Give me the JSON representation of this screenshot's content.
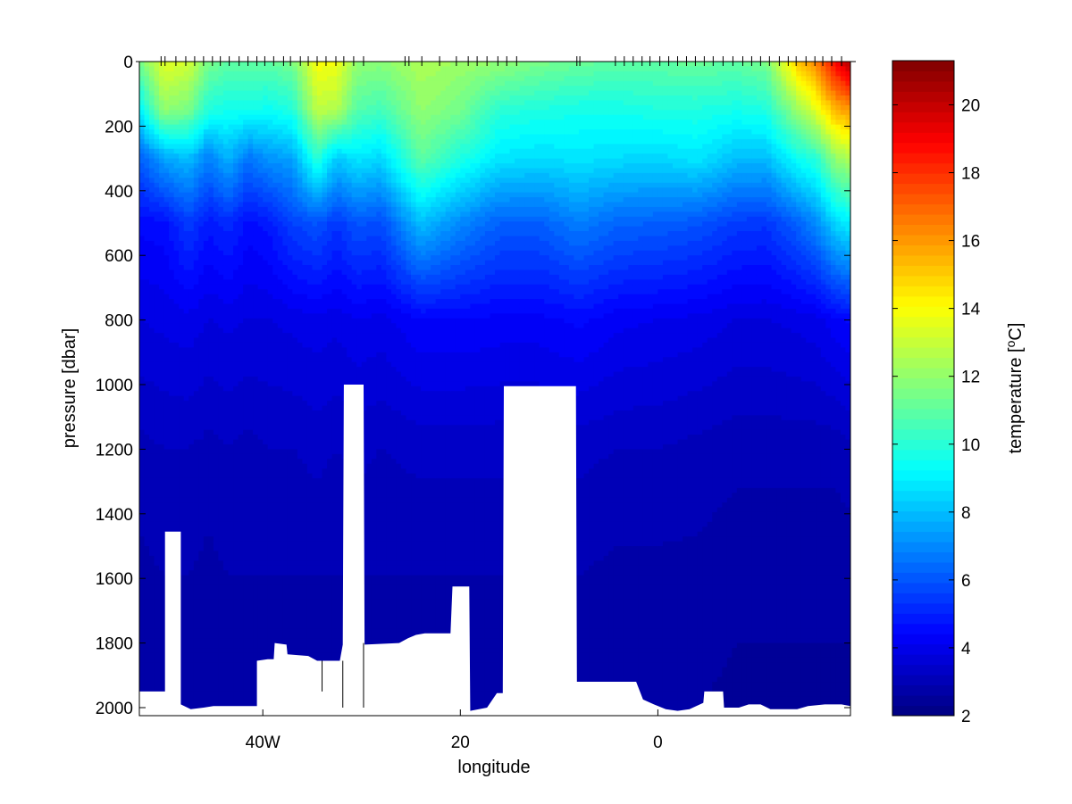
{
  "chart_data": {
    "type": "heatmap",
    "title": "",
    "xlabel": "longitude",
    "ylabel": "pressure [dbar]",
    "xlim": [
      -52.5,
      19.5
    ],
    "ylim": [
      2025,
      0
    ],
    "x_ticks": [
      {
        "value": -40,
        "label": "40W"
      },
      {
        "value": -20,
        "label": "20"
      },
      {
        "value": 0,
        "label": "0"
      }
    ],
    "y_ticks": [
      0,
      200,
      400,
      600,
      800,
      1000,
      1200,
      1400,
      1600,
      1800,
      2000
    ],
    "colorbar": {
      "label": "temperature [°C]",
      "label_main": "temperature [",
      "label_sup": "o",
      "label_unit": "C]",
      "range": [
        2.0,
        21.3
      ],
      "ticks": [
        2,
        4,
        6,
        8,
        10,
        12,
        14,
        16,
        18,
        20
      ],
      "colormap": "jet"
    },
    "station_longitudes": [
      -50.3,
      -49.9,
      -48.8,
      -47.8,
      -46.9,
      -46.0,
      -45.1,
      -44.3,
      -43.4,
      -42.4,
      -41.5,
      -40.6,
      -39.8,
      -38.9,
      -37.9,
      -37.2,
      -36.2,
      -35.4,
      -34.5,
      -33.6,
      -32.6,
      -31.8,
      -30.8,
      -29.8,
      -25.6,
      -25.2,
      -23.9,
      -22.1,
      -20.4,
      -19.2,
      -18.3,
      -17.3,
      -16.2,
      -15.3,
      -14.3,
      -8.2,
      -7.9,
      -4.3,
      -3.4,
      -2.5,
      -1.6,
      -0.8,
      0.2,
      1.1,
      2.0,
      2.9,
      3.8,
      4.7,
      5.6,
      6.6,
      7.6,
      8.6,
      9.5,
      10.4,
      11.3,
      12.3,
      13.2,
      14.0,
      15.0,
      15.9,
      16.7,
      17.6,
      18.6
    ],
    "bottom_profile": [
      [
        -52.5,
        1950
      ],
      [
        -49.9,
        1950
      ],
      [
        -49.9,
        1455
      ],
      [
        -48.3,
        1455
      ],
      [
        -48.3,
        1990
      ],
      [
        -47.3,
        2005
      ],
      [
        -46.0,
        2000
      ],
      [
        -45.0,
        1995
      ],
      [
        -40.6,
        1995
      ],
      [
        -40.6,
        1855
      ],
      [
        -39.5,
        1850
      ],
      [
        -38.9,
        1850
      ],
      [
        -38.8,
        1800
      ],
      [
        -37.6,
        1805
      ],
      [
        -37.5,
        1835
      ],
      [
        -35.4,
        1840
      ],
      [
        -34.5,
        1855
      ],
      [
        -33.3,
        1855
      ],
      [
        -32.2,
        1855
      ],
      [
        -31.9,
        1805
      ],
      [
        -31.8,
        1000
      ],
      [
        -29.8,
        1000
      ],
      [
        -29.7,
        1805
      ],
      [
        -26.2,
        1800
      ],
      [
        -25.3,
        1785
      ],
      [
        -24.5,
        1775
      ],
      [
        -23.6,
        1770
      ],
      [
        -21.0,
        1770
      ],
      [
        -20.8,
        1625
      ],
      [
        -19.1,
        1625
      ],
      [
        -19.0,
        2010
      ],
      [
        -17.3,
        2000
      ],
      [
        -16.3,
        1955
      ],
      [
        -15.7,
        1955
      ],
      [
        -15.6,
        1005
      ],
      [
        -8.3,
        1005
      ],
      [
        -8.2,
        1920
      ],
      [
        -2.2,
        1920
      ],
      [
        -1.5,
        1975
      ],
      [
        -0.4,
        1990
      ],
      [
        0.8,
        2005
      ],
      [
        2.0,
        2010
      ],
      [
        3.2,
        2005
      ],
      [
        4.6,
        1985
      ],
      [
        4.7,
        1950
      ],
      [
        6.6,
        1950
      ],
      [
        6.7,
        2000
      ],
      [
        8.2,
        2000
      ],
      [
        9.2,
        1990
      ],
      [
        10.4,
        1990
      ],
      [
        11.4,
        2005
      ],
      [
        12.4,
        2005
      ],
      [
        14.1,
        2005
      ],
      [
        15.2,
        1995
      ],
      [
        16.9,
        1990
      ],
      [
        18.6,
        1990
      ],
      [
        19.5,
        1995
      ]
    ],
    "bottom_spikes": [
      {
        "x": -34.0,
        "top": 1855,
        "bottom": 1950
      },
      {
        "x": -31.9,
        "top": 1855,
        "bottom": 2000
      },
      {
        "x": -29.8,
        "top": 1800,
        "bottom": 2000
      }
    ],
    "temperature_field": {
      "depth_levels": [
        0,
        150,
        300,
        500,
        800,
        1200,
        1600,
        2025
      ],
      "profiles": [
        {
          "x": -52.5,
          "t": [
            11.5,
            9.0,
            6.2,
            4.5,
            3.8,
            3.1,
            2.8,
            2.6
          ]
        },
        {
          "x": -50.0,
          "t": [
            13.5,
            12.0,
            7.5,
            4.6,
            3.9,
            3.2,
            2.9,
            2.6
          ]
        },
        {
          "x": -47.5,
          "t": [
            13.2,
            11.5,
            8.0,
            5.5,
            4.0,
            3.2,
            2.9,
            2.6
          ]
        },
        {
          "x": -45.5,
          "t": [
            11.5,
            9.8,
            6.8,
            4.8,
            3.8,
            3.1,
            2.8,
            2.6
          ]
        },
        {
          "x": -43.5,
          "t": [
            11.0,
            9.6,
            7.8,
            5.2,
            3.9,
            3.2,
            2.9,
            2.6
          ]
        },
        {
          "x": -41.5,
          "t": [
            11.0,
            9.6,
            6.6,
            4.6,
            3.8,
            3.1,
            2.9,
            2.6
          ]
        },
        {
          "x": -39.5,
          "t": [
            11.0,
            9.4,
            7.2,
            4.8,
            3.8,
            3.2,
            2.9,
            2.6
          ]
        },
        {
          "x": -37.0,
          "t": [
            11.5,
            9.8,
            7.5,
            5.6,
            3.9,
            3.2,
            2.9,
            2.6
          ]
        },
        {
          "x": -34.5,
          "t": [
            14.0,
            12.8,
            10.0,
            6.0,
            4.0,
            3.3,
            2.9,
            2.6
          ]
        },
        {
          "x": -32.5,
          "t": [
            13.8,
            12.6,
            8.2,
            5.4,
            3.9,
            3.2,
            2.9,
            2.6
          ]
        },
        {
          "x": -30.5,
          "t": [
            12.0,
            10.8,
            8.8,
            6.0,
            4.1,
            3.3,
            2.9,
            2.6
          ]
        },
        {
          "x": -28.0,
          "t": [
            11.8,
            10.5,
            8.5,
            5.8,
            4.0,
            3.2,
            2.9,
            2.6
          ]
        },
        {
          "x": -24.0,
          "t": [
            12.5,
            12.0,
            11.0,
            8.0,
            4.4,
            3.3,
            2.9,
            2.6
          ]
        },
        {
          "x": -20.0,
          "t": [
            12.2,
            11.4,
            9.8,
            7.0,
            4.4,
            3.3,
            2.9,
            2.6
          ]
        },
        {
          "x": -16.0,
          "t": [
            12.0,
            10.0,
            8.8,
            6.2,
            4.3,
            3.3,
            2.9,
            2.6
          ]
        },
        {
          "x": -12.0,
          "t": [
            11.5,
            9.8,
            8.6,
            6.2,
            4.3,
            3.3,
            2.9,
            2.6
          ]
        },
        {
          "x": -8.0,
          "t": [
            11.2,
            9.6,
            8.8,
            6.8,
            4.5,
            3.3,
            2.9,
            2.6
          ]
        },
        {
          "x": -4.0,
          "t": [
            11.0,
            9.6,
            8.6,
            6.3,
            4.2,
            3.2,
            2.8,
            2.6
          ]
        },
        {
          "x": 0.0,
          "t": [
            11.0,
            9.8,
            8.5,
            6.2,
            4.1,
            3.2,
            2.8,
            2.6
          ]
        },
        {
          "x": 4.0,
          "t": [
            11.2,
            9.8,
            8.8,
            6.0,
            4.0,
            3.1,
            2.8,
            2.6
          ]
        },
        {
          "x": 8.0,
          "t": [
            11.0,
            9.6,
            8.0,
            5.5,
            3.8,
            3.0,
            2.7,
            2.5
          ]
        },
        {
          "x": 11.0,
          "t": [
            11.5,
            9.8,
            8.0,
            5.4,
            3.8,
            3.0,
            2.7,
            2.5
          ]
        },
        {
          "x": 14.0,
          "t": [
            15.0,
            12.0,
            9.4,
            6.2,
            3.9,
            3.0,
            2.7,
            2.5
          ]
        },
        {
          "x": 16.0,
          "t": [
            16.5,
            13.5,
            10.0,
            7.0,
            4.0,
            3.0,
            2.7,
            2.5
          ]
        },
        {
          "x": 18.0,
          "t": [
            19.0,
            15.5,
            12.0,
            8.5,
            4.3,
            3.0,
            2.7,
            2.5
          ]
        },
        {
          "x": 19.5,
          "t": [
            20.5,
            16.0,
            12.5,
            9.0,
            4.5,
            3.1,
            2.7,
            2.5
          ]
        }
      ]
    }
  }
}
